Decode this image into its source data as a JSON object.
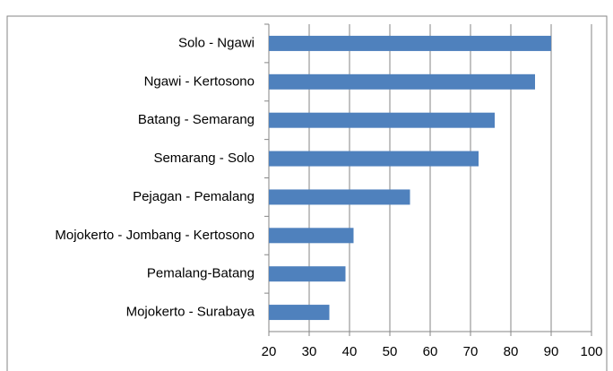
{
  "chart_data": {
    "type": "hbar",
    "categories": [
      "Solo - Ngawi",
      "Ngawi - Kertosono",
      "Batang - Semarang",
      "Semarang - Solo",
      "Pejagan - Pemalang",
      "Mojokerto - Jombang - Kertosono",
      "Pemalang-Batang",
      "Mojokerto - Surabaya"
    ],
    "values": [
      90,
      86,
      76,
      72,
      55,
      41,
      39,
      35
    ],
    "color": "#4f81bd",
    "xlim": [
      20,
      100
    ],
    "xticks": [
      20,
      30,
      40,
      50,
      60,
      70,
      80,
      90,
      100
    ],
    "grid": true
  }
}
